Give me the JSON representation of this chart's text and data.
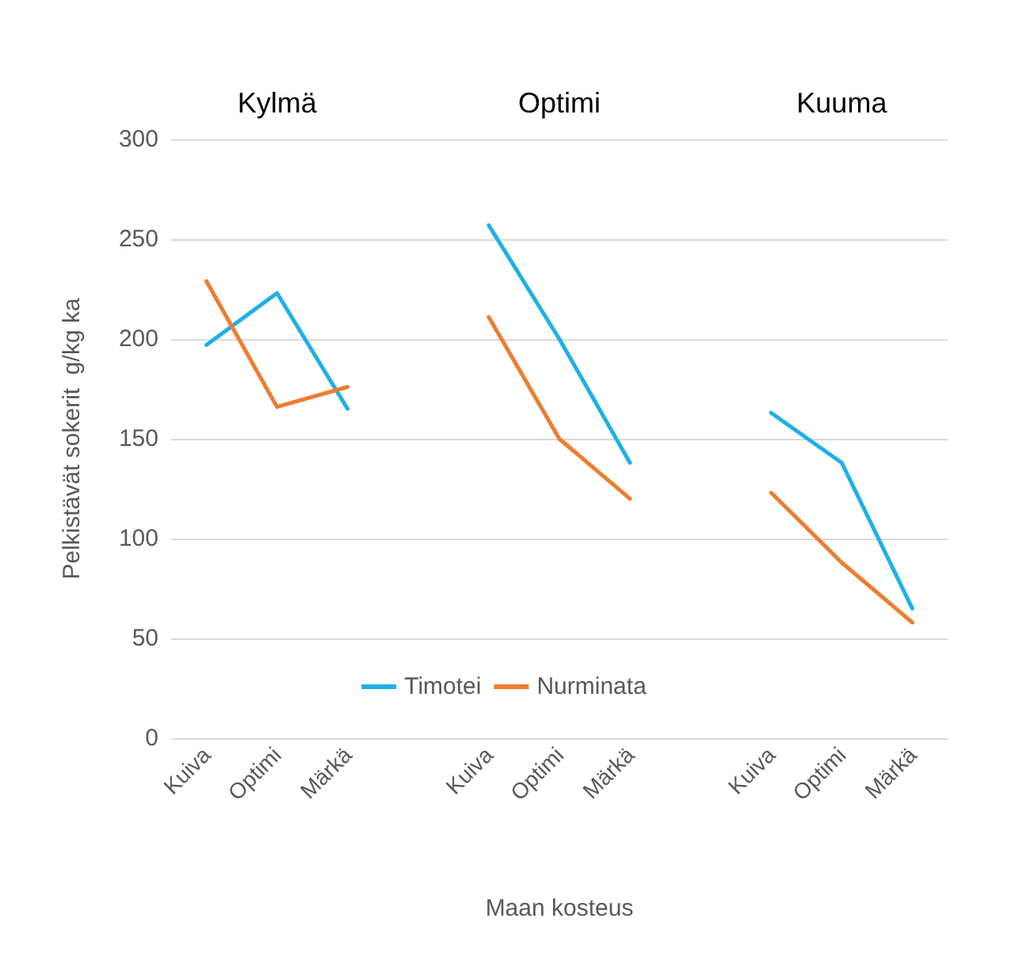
{
  "chart_data": {
    "type": "line",
    "ylabel": "Pelkistävät sokerit  g/kg ka",
    "xlabel": "Maan kosteus",
    "annotations": [
      "Kylmä",
      "Optimi",
      "Kuuma"
    ],
    "categories": [
      "Kuiva",
      "Optimi",
      "Märkä",
      null,
      "Kuiva",
      "Optimi",
      "Märkä",
      null,
      "Kuiva",
      "Optimi",
      "Märkä"
    ],
    "series": [
      {
        "name": "Timotei",
        "color": "#1fb0e6",
        "values": [
          197,
          223,
          165,
          null,
          257,
          200,
          138,
          null,
          163,
          138,
          65
        ]
      },
      {
        "name": "Nurminata",
        "color": "#ed7d31",
        "values": [
          229,
          166,
          176,
          null,
          211,
          150,
          120,
          null,
          123,
          88,
          58
        ]
      }
    ],
    "ylim": [
      0,
      300
    ],
    "yticks": [
      0,
      50,
      100,
      150,
      200,
      250,
      300
    ],
    "grid": "y",
    "legend": "bottom",
    "marker": "none",
    "line_style": "solid"
  }
}
